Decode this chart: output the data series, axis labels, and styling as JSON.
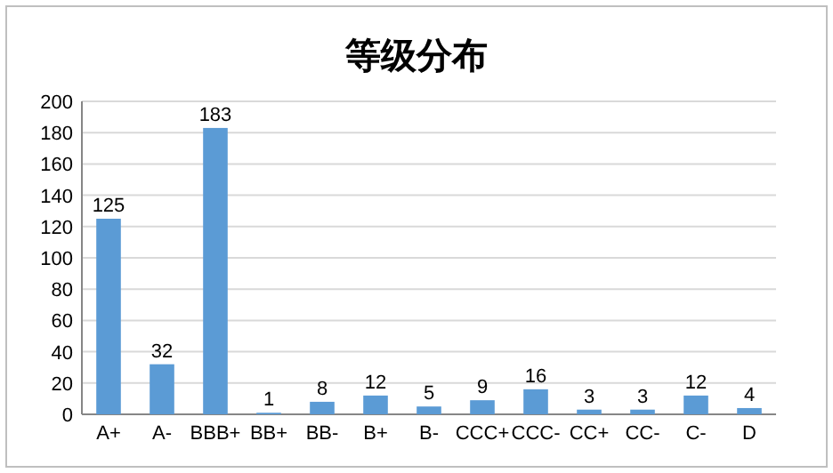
{
  "chart_data": {
    "type": "bar",
    "title": "等级分布",
    "categories": [
      "A+",
      "A-",
      "BBB+",
      "BB+",
      "BB-",
      "B+",
      "B-",
      "CCC+",
      "CCC-",
      "CC+",
      "CC-",
      "C-",
      "D"
    ],
    "values": [
      125,
      32,
      183,
      1,
      8,
      12,
      5,
      9,
      16,
      3,
      3,
      12,
      4
    ],
    "color": "#5b9bd5",
    "ylim": [
      0,
      200
    ],
    "yticks": [
      0,
      20,
      40,
      60,
      80,
      100,
      120,
      140,
      160,
      180,
      200
    ],
    "grid": "y",
    "data_labels": true
  }
}
